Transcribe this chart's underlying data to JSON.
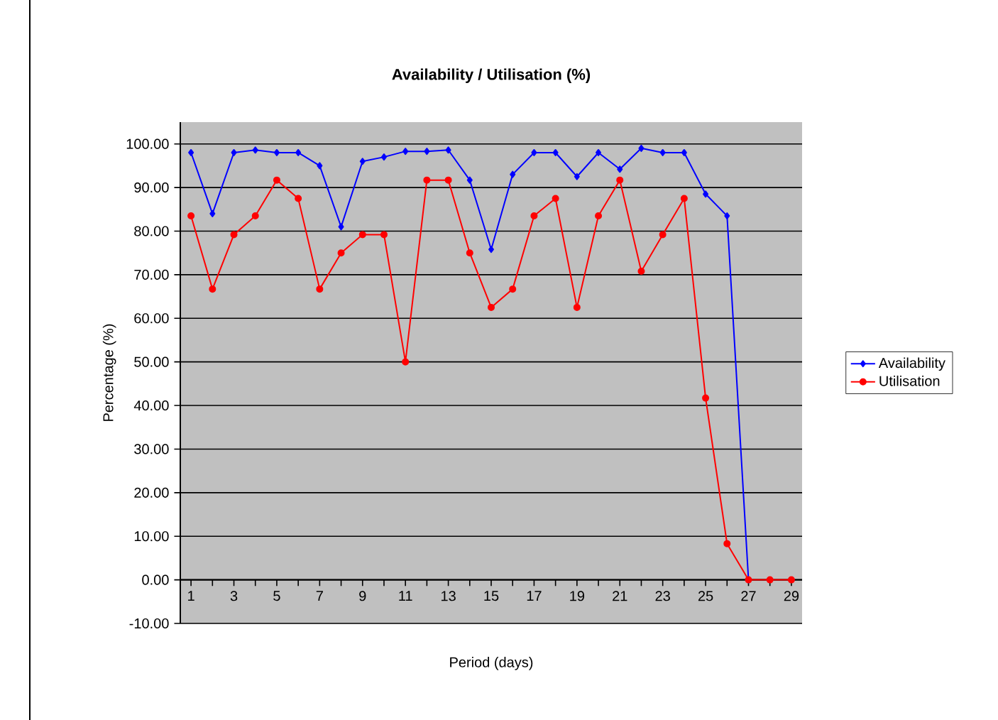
{
  "chart_data": {
    "type": "line",
    "title": "Availability / Utilisation (%)",
    "xlabel": "Period (days)",
    "ylabel": "Percentage (%)",
    "categories": [
      "1",
      null,
      "3",
      null,
      "5",
      null,
      "7",
      null,
      "9",
      null,
      "11",
      null,
      "13",
      null,
      "15",
      null,
      "17",
      null,
      "19",
      null,
      "21",
      null,
      "23",
      null,
      "25",
      null,
      "27",
      null,
      "29"
    ],
    "series": [
      {
        "name": "Availability",
        "color": "#0000ff",
        "marker": "diamond",
        "values": [
          98,
          84,
          98,
          98.6,
          98,
          98,
          95,
          81,
          96,
          97,
          98.3,
          98.3,
          98.6,
          91.7,
          75.8,
          93,
          98,
          98,
          92.5,
          98,
          94.2,
          99,
          98,
          98,
          88.5,
          83.5,
          0,
          null,
          null
        ]
      },
      {
        "name": "Utilisation",
        "color": "#ff0000",
        "marker": "circle",
        "values": [
          83.5,
          66.7,
          79.2,
          83.5,
          91.7,
          87.5,
          66.7,
          75,
          79.2,
          79.2,
          50,
          91.7,
          91.7,
          75,
          62.5,
          66.7,
          83.5,
          87.5,
          62.5,
          83.5,
          91.7,
          70.8,
          79.2,
          87.5,
          41.7,
          8.3,
          0,
          0,
          0
        ]
      }
    ],
    "ylim": [
      -10,
      105
    ],
    "yticks": [
      {
        "value": -10,
        "label": "-10.00"
      },
      {
        "value": 0,
        "label": "0.00"
      },
      {
        "value": 10,
        "label": "10.00"
      },
      {
        "value": 20,
        "label": "20.00"
      },
      {
        "value": 30,
        "label": "30.00"
      },
      {
        "value": 40,
        "label": "40.00"
      },
      {
        "value": 50,
        "label": "50.00"
      },
      {
        "value": 60,
        "label": "60.00"
      },
      {
        "value": 70,
        "label": "70.00"
      },
      {
        "value": 80,
        "label": "80.00"
      },
      {
        "value": 90,
        "label": "90.00"
      },
      {
        "value": 100,
        "label": "100.00"
      }
    ],
    "grid": "y",
    "legend": "right",
    "line_style": "solid"
  }
}
